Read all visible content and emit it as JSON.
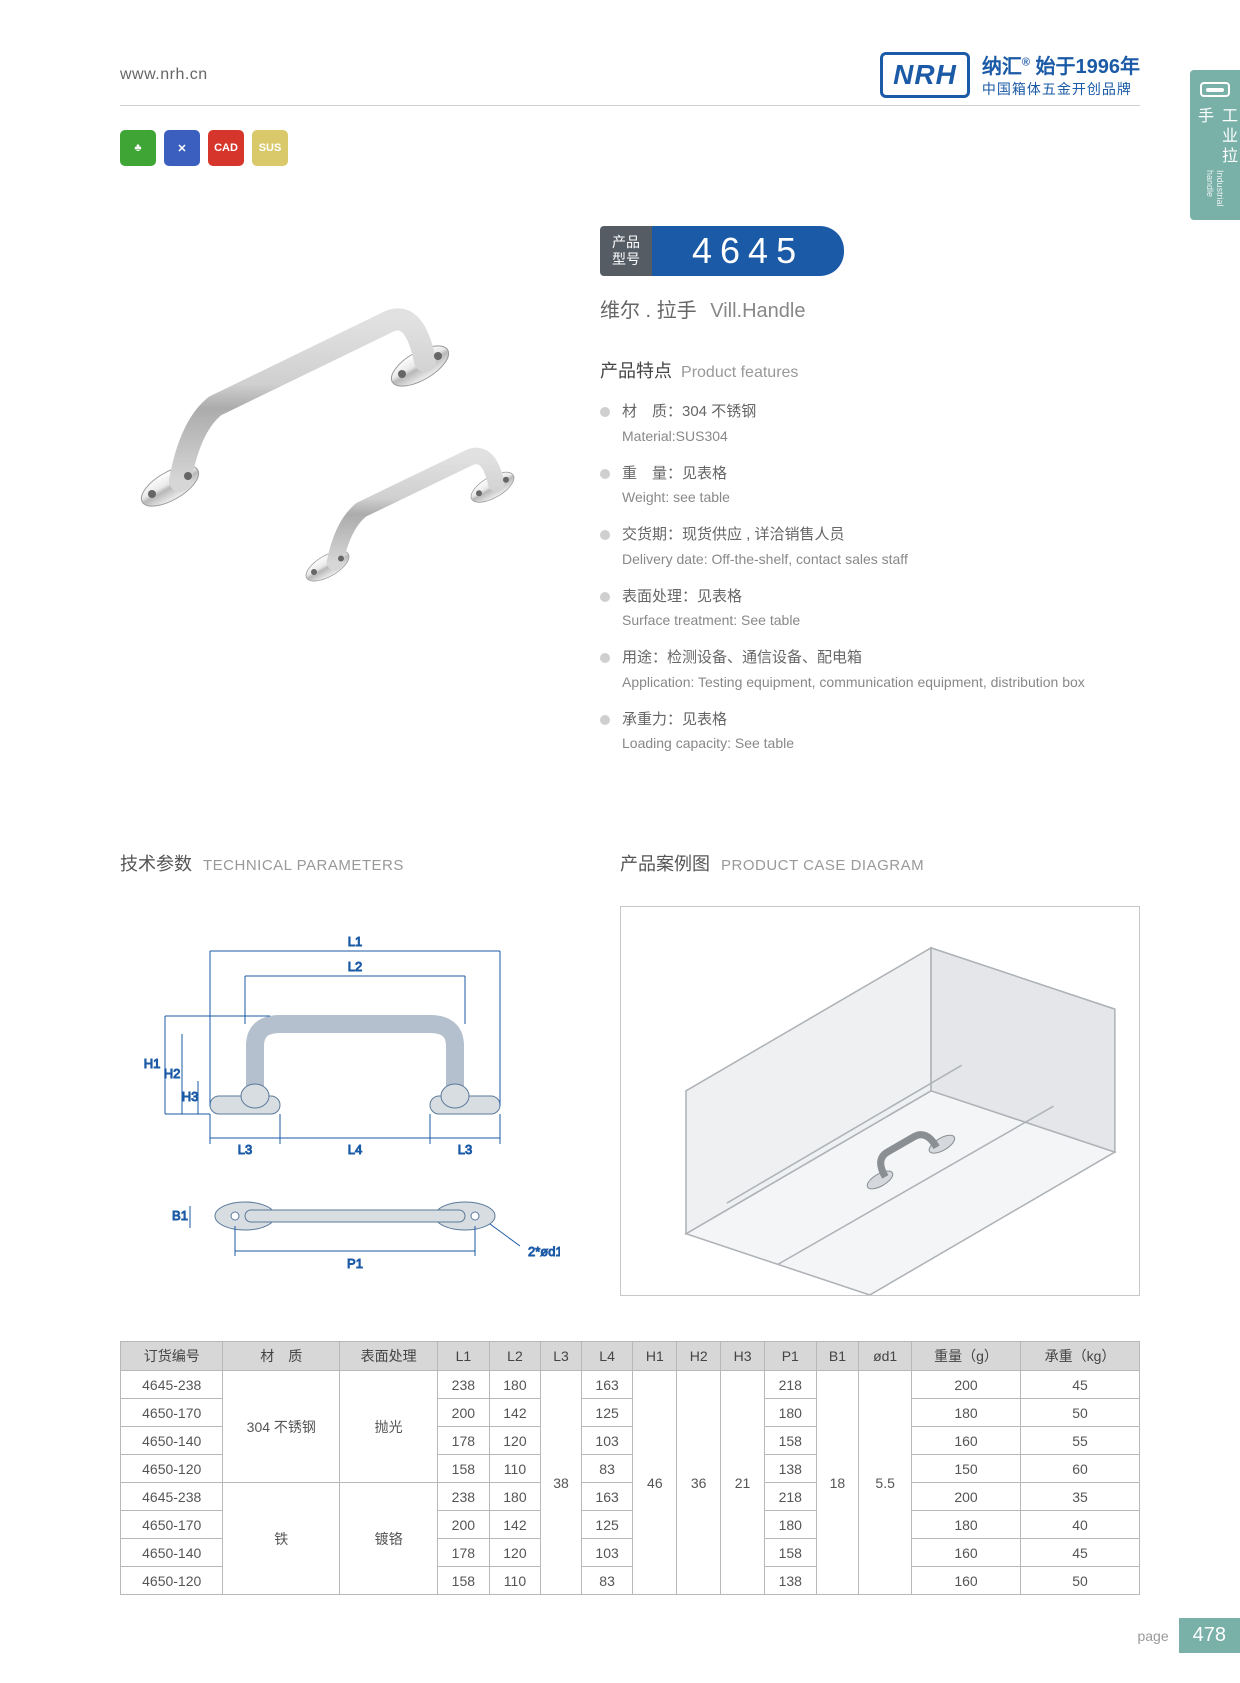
{
  "header": {
    "url": "www.nrh.cn",
    "logo": "NRH",
    "brand_cn": "纳汇",
    "since": "始于1996年",
    "tagline": "中国箱体五金开创品牌"
  },
  "side_tab": {
    "cn": "工业拉手",
    "en": "Industrial handle"
  },
  "badges": [
    {
      "color": "#3fa535",
      "label": "♣"
    },
    {
      "color": "#3a5fbf",
      "label": "✕"
    },
    {
      "color": "#d6352b",
      "label": "CAD"
    },
    {
      "color": "#d9c96a",
      "label": "SUS"
    }
  ],
  "model": {
    "label_l1": "产品",
    "label_l2": "型号",
    "number": "4645"
  },
  "product_name": {
    "cn": "维尔 . 拉手",
    "en": "Vill.Handle"
  },
  "features": {
    "title_cn": "产品特点",
    "title_en": "Product features",
    "items": [
      {
        "cn": "材　质：304 不锈钢",
        "en": "Material:SUS304"
      },
      {
        "cn": "重　量：见表格",
        "en": "Weight: see table"
      },
      {
        "cn": "交货期：现货供应 , 详洽销售人员",
        "en": "Delivery date: Off-the-shelf, contact sales staff"
      },
      {
        "cn": "表面处理：见表格",
        "en": "Surface treatment: See table"
      },
      {
        "cn": "用途：检测设备、通信设备、配电箱",
        "en": "Application: Testing equipment, communication equipment, distribution box"
      },
      {
        "cn": "承重力：见表格",
        "en": "Loading capacity: See table"
      }
    ]
  },
  "sections": {
    "tech_cn": "技术参数",
    "tech_en": "TECHNICAL PARAMETERS",
    "case_cn": "产品案例图",
    "case_en": "PRODUCT CASE DIAGRAM"
  },
  "diagram_labels": {
    "L1": "L1",
    "L2": "L2",
    "L3": "L3",
    "L4": "L4",
    "H1": "H1",
    "H2": "H2",
    "H3": "H3",
    "P1": "P1",
    "B1": "B1",
    "d1": "2*ød1"
  },
  "table": {
    "headers": [
      "订货编号",
      "材　质",
      "表面处理",
      "L1",
      "L2",
      "L3",
      "L4",
      "H1",
      "H2",
      "H3",
      "P1",
      "B1",
      "ød1",
      "重量（g）",
      "承重（kg）"
    ],
    "groups": [
      {
        "material": "304 不锈钢",
        "surface": "抛光",
        "rows": [
          {
            "code": "4645-238",
            "L1": "238",
            "L2": "180",
            "L4": "163",
            "P1": "218",
            "wt": "200",
            "load": "45"
          },
          {
            "code": "4650-170",
            "L1": "200",
            "L2": "142",
            "L4": "125",
            "P1": "180",
            "wt": "180",
            "load": "50"
          },
          {
            "code": "4650-140",
            "L1": "178",
            "L2": "120",
            "L4": "103",
            "P1": "158",
            "wt": "160",
            "load": "55"
          },
          {
            "code": "4650-120",
            "L1": "158",
            "L2": "110",
            "L4": "83",
            "P1": "138",
            "wt": "150",
            "load": "60"
          }
        ]
      },
      {
        "material": "铁",
        "surface": "镀铬",
        "rows": [
          {
            "code": "4645-238",
            "L1": "238",
            "L2": "180",
            "L4": "163",
            "P1": "218",
            "wt": "200",
            "load": "35"
          },
          {
            "code": "4650-170",
            "L1": "200",
            "L2": "142",
            "L4": "125",
            "P1": "180",
            "wt": "180",
            "load": "40"
          },
          {
            "code": "4650-140",
            "L1": "178",
            "L2": "120",
            "L4": "103",
            "P1": "158",
            "wt": "160",
            "load": "45"
          },
          {
            "code": "4650-120",
            "L1": "158",
            "L2": "110",
            "L4": "83",
            "P1": "138",
            "wt": "160",
            "load": "50"
          }
        ]
      }
    ],
    "shared": {
      "L3": "38",
      "H1": "46",
      "H2": "36",
      "H3": "21",
      "B1": "18",
      "d1": "5.5"
    }
  },
  "footer": {
    "label": "page",
    "number": "478"
  }
}
